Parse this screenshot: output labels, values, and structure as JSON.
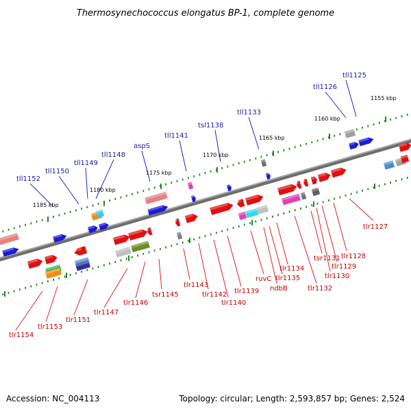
{
  "title": "Thermosynechococcus elongatus BP-1, complete genome",
  "footer": {
    "accession": "Accession: NC_004113",
    "summary": "Topology: circular; Length: 2,593,857 bp; Genes: 2,524"
  },
  "colors": {
    "backbone": "#8a8a8a",
    "forward_gene": "#1a1ad8",
    "reverse_gene": "#e01010",
    "forward_label": "#1a1aa0",
    "reverse_label": "#c00000",
    "tick": "#1e8a1e"
  },
  "scale_labels": [
    "1155 kbp",
    "1160 kbp",
    "1165 kbp",
    "1170 kbp",
    "1175 kbp",
    "1180 kbp",
    "1185 kbp"
  ],
  "top_labels": [
    "tll1125",
    "tll1126",
    "tll1133",
    "tsl1138",
    "tll1141",
    "aspS",
    "tll1148",
    "tll1149",
    "tll1150",
    "tll1152"
  ],
  "bottom_labels": [
    "tlr1127",
    "tlr1128",
    "tlr1129",
    "tlr1130",
    "tsr1131",
    "tlr1132",
    "tlr1134",
    "tlr1135",
    "ndbB",
    "ruvC",
    "tlr1139",
    "tlr1140",
    "tlr1142",
    "tlr1143",
    "tsr1145",
    "tlr1146",
    "tlr1147",
    "tlr1151",
    "tlr1153",
    "tlr1154"
  ]
}
